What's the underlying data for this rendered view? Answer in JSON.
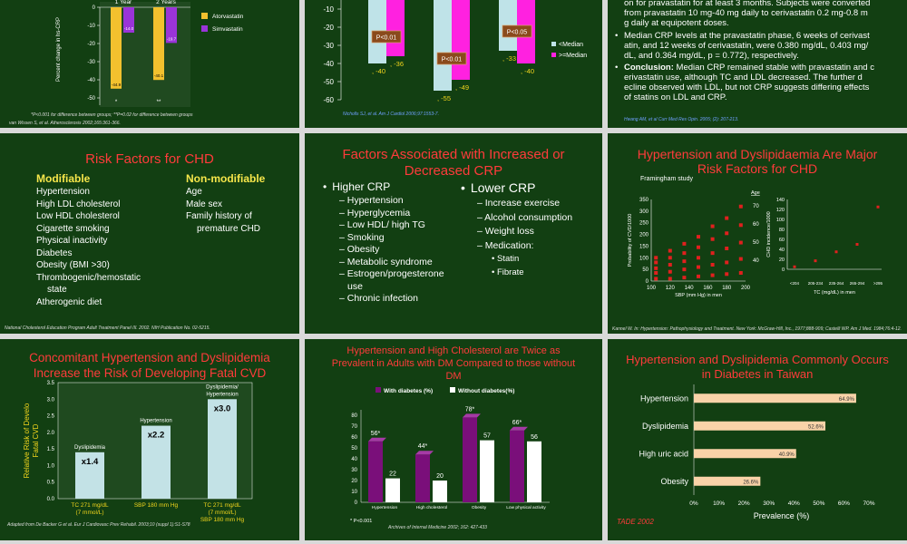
{
  "slides": {
    "s1": {
      "chart_data": {
        "type": "bar",
        "categories": [
          "1 Year",
          "2 Years"
        ],
        "series": [
          {
            "name": "Atorvastatin",
            "values": [
              -44.9,
              -40.1
            ]
          },
          {
            "name": "Simvastatin",
            "values": [
              -14.0,
              -19.7
            ]
          }
        ],
        "value_labels": [
          [
            "-44.9",
            "-14.0"
          ],
          [
            "-40.1",
            "-19.7"
          ]
        ],
        "marks": [
          "*",
          "**"
        ],
        "ylabel": "Percent change in hs-CRP",
        "yticks": [
          "0",
          "-10",
          "-20",
          "-30",
          "-40",
          "-50"
        ],
        "ylim": [
          -50,
          0
        ],
        "colors": {
          "Atorvastatin": "#f2c12e",
          "Simvastatin": "#9a34d8"
        }
      },
      "footnote": "*P<0.001 for difference between groups; **P=0.02 for difference between groups",
      "citation_author": "van Wissen S, et al.",
      "citation_journal": "Atherosclerosis",
      "citation_ref": "2002;165:361-366."
    },
    "s2": {
      "chart_data": {
        "type": "bar",
        "yticks": [
          "-10",
          "-20",
          "-30",
          "-40",
          "-50",
          "-60"
        ],
        "ylim": [
          -60,
          -5
        ],
        "groups": [
          {
            "median_lt": -40,
            "median_ge": -36,
            "label_lt": "-40",
            "label_ge": "-36",
            "p": "P<0.01"
          },
          {
            "median_lt": -55,
            "median_ge": -49,
            "label_lt": "-55",
            "label_ge": "-49",
            "p": "P<0.01"
          },
          {
            "median_lt": -33,
            "median_ge": -40,
            "label_lt": "-33",
            "label_ge": "-40",
            "p": "P<0.05"
          }
        ],
        "legend": [
          "<Median",
          ">=Median"
        ],
        "colors": {
          "lt": "#bfe3e8",
          "ge": "#ff21e0"
        }
      },
      "citation": "Nicholls SJ, et al. Am J Cardiol 2006;97:1553-7."
    },
    "s3": {
      "intro": [
        "on for pravastatin for at least 3 months. Subjects were converted",
        "from pravastatin 10 mg-40 mg daily to cerivastatin 0.2 mg-0.8 m",
        "g daily at equipotent doses."
      ],
      "bullet1": [
        "Median CRP levels at the pravastatin phase, 6 weeks of cerivast",
        "atin, and 12 weeks of cerivastatin, were 0.380 mg/dL, 0.403 mg/",
        "dL, and 0.364 mg/dL, p = 0.772), respectively."
      ],
      "conclusion_label": "Conclusion:",
      "conclusion_lines": [
        " Median CRP remained stable with pravastatin and c",
        "erivastatin use, although TC and LDL decreased. The further d",
        "ecline observed with LDL, but not CRP suggests differing effects",
        "of statins on LDL and CRP."
      ],
      "citation": "Hwang AM, et al Curr Med Res Opin. 2005; (2): 207-213."
    },
    "s4": {
      "title": "Risk Factors for CHD",
      "modifiable_heading": "Modifiable",
      "modifiable": [
        "Hypertension",
        "High LDL cholesterol",
        "Low HDL cholesterol",
        "Cigarette smoking",
        "Physical inactivity",
        "Diabetes",
        "Obesity (BMI >30)",
        "Thrombogenic/hemostatic",
        "state",
        "Atherogenic diet"
      ],
      "nonmod_heading": "Non-modifiable",
      "nonmodifiable": [
        "Age",
        "Male sex",
        "Family history of",
        "premature CHD"
      ],
      "citation": "National Cholesterol Education Program Adult Treatment Panel III. 2002. NIH Publication No. 02-5215."
    },
    "s5": {
      "title_line1": "Factors Associated with Increased or",
      "title_line2": "Decreased CRP",
      "higher_heading": "Higher CRP",
      "higher": [
        "Hypertension",
        "Hyperglycemia",
        "Low HDL/ high TG",
        "Smoking",
        "Obesity",
        "Metabolic syndrome",
        "Estrogen/progesterone",
        "use",
        "Chronic infection"
      ],
      "lower_heading": "Lower CRP",
      "lower": [
        "Increase exercise",
        "Alcohol consumption",
        "Weight loss",
        "Medication:"
      ],
      "medication": [
        "Statin",
        "Fibrate"
      ]
    },
    "s6": {
      "title_line1": "Hypertension and Dyslipidaemia Are Major",
      "title_line2": "Risk Factors for CHD",
      "subtitle": "Framingham study",
      "chart_data": [
        {
          "type": "scatter",
          "ylabel": "Probability of CVD/1000",
          "xlabel": "SBP (mm Hg) in men",
          "xticks": [
            "100",
            "120",
            "140",
            "160",
            "180",
            "200"
          ],
          "yticks": [
            "0",
            "50",
            "100",
            "150",
            "200",
            "250",
            "300",
            "350"
          ],
          "age_label": "Age",
          "age_ticks": [
            "70",
            "60",
            "50",
            "40"
          ],
          "points": [
            [
              105,
              100
            ],
            [
              105,
              80
            ],
            [
              105,
              55
            ],
            [
              105,
              35
            ],
            [
              105,
              10
            ],
            [
              120,
              130
            ],
            [
              120,
              100
            ],
            [
              120,
              70
            ],
            [
              120,
              40
            ],
            [
              120,
              10
            ],
            [
              135,
              160
            ],
            [
              135,
              120
            ],
            [
              135,
              85
            ],
            [
              135,
              50
            ],
            [
              135,
              15
            ],
            [
              150,
              190
            ],
            [
              150,
              145
            ],
            [
              150,
              100
            ],
            [
              150,
              60
            ],
            [
              150,
              20
            ],
            [
              165,
              235
            ],
            [
              165,
              180
            ],
            [
              165,
              120
            ],
            [
              165,
              70
            ],
            [
              165,
              25
            ],
            [
              180,
              270
            ],
            [
              180,
              205
            ],
            [
              180,
              140
            ],
            [
              180,
              80
            ],
            [
              180,
              30
            ],
            [
              195,
              320
            ],
            [
              195,
              240
            ],
            [
              195,
              165
            ],
            [
              195,
              95
            ],
            [
              195,
              35
            ]
          ]
        },
        {
          "type": "scatter",
          "ylabel": "CHD incidence/1000",
          "xlabel": "TC (mg/dL) in men",
          "xticks": [
            "<204",
            "205-234",
            "235-264",
            "265-294",
            ">295"
          ],
          "yticks": [
            "0",
            "20",
            "40",
            "60",
            "80",
            "100",
            "120",
            "140"
          ],
          "points": [
            [
              0,
              5
            ],
            [
              1,
              17
            ],
            [
              2,
              35
            ],
            [
              3,
              50
            ],
            [
              4,
              125
            ]
          ]
        }
      ],
      "citation": "Kannel W. In: Hypertension: Pathophysiology and Treatment. New York: McGraw-Hill, Inc., 1977;888-909; Castelli WP. Am J Med. 1984;76:4-12."
    },
    "s7": {
      "title_line1": "Concomitant Hypertension and Dyslipidemia",
      "title_line2": "Increase the Risk of Developing Fatal CVD",
      "chart_data": {
        "type": "bar",
        "ylabel": "Relative Risk of Develo Fatal CVD",
        "yticks": [
          "0.0",
          "0.5",
          "1.0",
          "1.5",
          "2.0",
          "2.5",
          "3.0",
          "3.5"
        ],
        "ylim": [
          0,
          3.5
        ],
        "bars": [
          {
            "value": 1.4,
            "label": "x1.4",
            "top": "Dyslipidemia",
            "top2": "",
            "cat1": "TC 271 mg/dL",
            "cat2": "(7 mmol/L)",
            "cat3": ""
          },
          {
            "value": 2.2,
            "label": "x2.2",
            "top": "Hypertension",
            "top2": "",
            "cat1": "SBP 180 mm Hg",
            "cat2": "",
            "cat3": ""
          },
          {
            "value": 3.0,
            "label": "x3.0",
            "top": "Dyslipidemia/",
            "top2": "Hypertension",
            "cat1": "TC 271 mg/dL",
            "cat2": "(7 mmol/L)",
            "cat3": "SBP 180 mm Hg"
          }
        ],
        "color": "#c3e2e6"
      },
      "citation": "Adapted from De Backer G et al. Eur J Cardiovasc Prev Rehabil. 2003;10 (suppl 1):S1-S78"
    },
    "s8": {
      "title_line1": "Hypertension and High Cholesterol are Twice as",
      "title_line2": "Prevalent in Adults with DM Compared to those without",
      "title_line3": "DM",
      "chart_data": {
        "type": "bar",
        "categories": [
          "Hypertension",
          "High cholesterol",
          "Obesity",
          "Low physical activity"
        ],
        "series": [
          {
            "name": "With diabetes (%)",
            "values": [
              56,
              44,
              78,
              66
            ]
          },
          {
            "name": "Without diabetes(%)",
            "values": [
              22,
              20,
              57,
              56
            ]
          }
        ],
        "labels_with": [
          "56*",
          "44*",
          "78*",
          "66*"
        ],
        "labels_without": [
          "22",
          "20",
          "57",
          "56"
        ],
        "yticks": [
          "0",
          "10",
          "20",
          "30",
          "40",
          "50",
          "60",
          "70",
          "80"
        ],
        "ylim": [
          0,
          85
        ],
        "colors": {
          "with": "#7a0f7a",
          "without": "#ffffff"
        }
      },
      "footnote": "* P<0.001",
      "citation": "Archives of Internal Medicine 2002; 162: 427-433"
    },
    "s9": {
      "title_line1": "Hypertension and Dyslipidemia Commonly Occurs",
      "title_line2": "in Diabetes in Taiwan",
      "chart_data": {
        "type": "bar",
        "orientation": "horizontal",
        "categories": [
          "Hypertension",
          "Dyslipidemia",
          "High uric acid",
          "Obesity"
        ],
        "values": [
          64.9,
          52.6,
          40.9,
          26.6
        ],
        "labels": [
          "64.9%",
          "52.6%",
          "40.9%",
          "26.6%"
        ],
        "xticks": [
          "0%",
          "10%",
          "20%",
          "30%",
          "40%",
          "50%",
          "60%",
          "70%"
        ],
        "xlim": [
          0,
          70
        ],
        "xlabel": "Prevalence (%)",
        "color": "#f9d3a8"
      },
      "source": "TADE 2002"
    }
  }
}
